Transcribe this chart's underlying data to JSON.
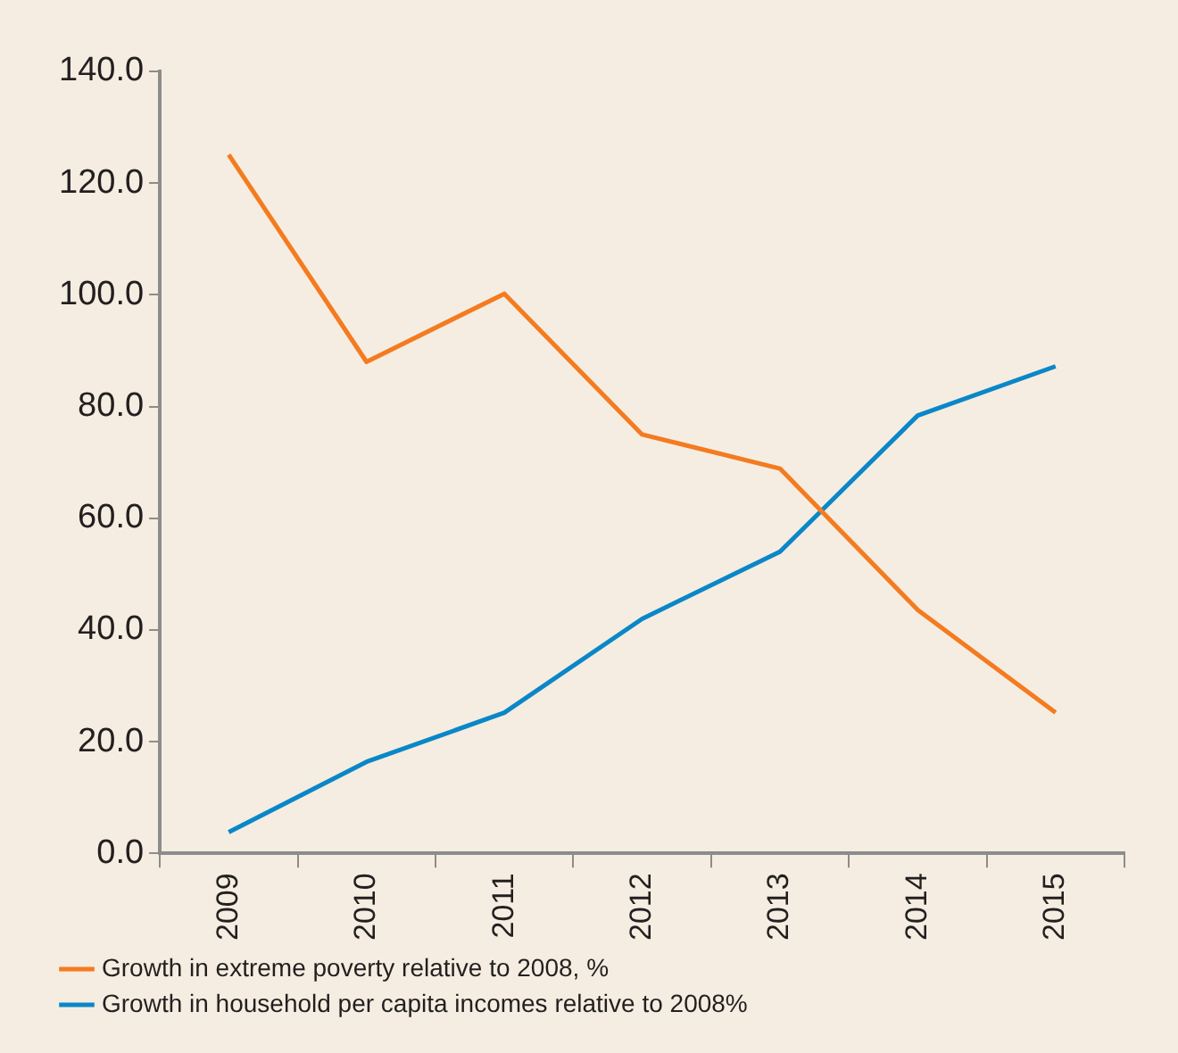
{
  "chart_data": {
    "type": "line",
    "categories": [
      "2009",
      "2010",
      "2011",
      "2012",
      "2013",
      "2014",
      "2015"
    ],
    "series": [
      {
        "name": "Growth in extreme poverty relative to 2008, %",
        "color": "#f47b20",
        "values": [
          125.1,
          88,
          100.2,
          75,
          68.9,
          43.6,
          25.2
        ]
      },
      {
        "name": "Growth in household per capita incomes relative to 2008%",
        "color": "#0a87c8",
        "values": [
          3.8,
          16.4,
          25.2,
          42,
          54,
          78.4,
          87.2
        ]
      }
    ],
    "ylim": [
      0,
      140
    ],
    "yticks": [
      {
        "value": 0,
        "label": "0.0"
      },
      {
        "value": 20,
        "label": "20.0"
      },
      {
        "value": 40,
        "label": "40.0"
      },
      {
        "value": 60,
        "label": "60.0"
      },
      {
        "value": 80,
        "label": "80.0"
      },
      {
        "value": 100,
        "label": "100.0"
      },
      {
        "value": 120,
        "label": "120.0"
      },
      {
        "value": 140,
        "label": "140.0"
      }
    ],
    "grid": false,
    "legend": "bottom",
    "marker": "none",
    "line_style": "solid"
  }
}
